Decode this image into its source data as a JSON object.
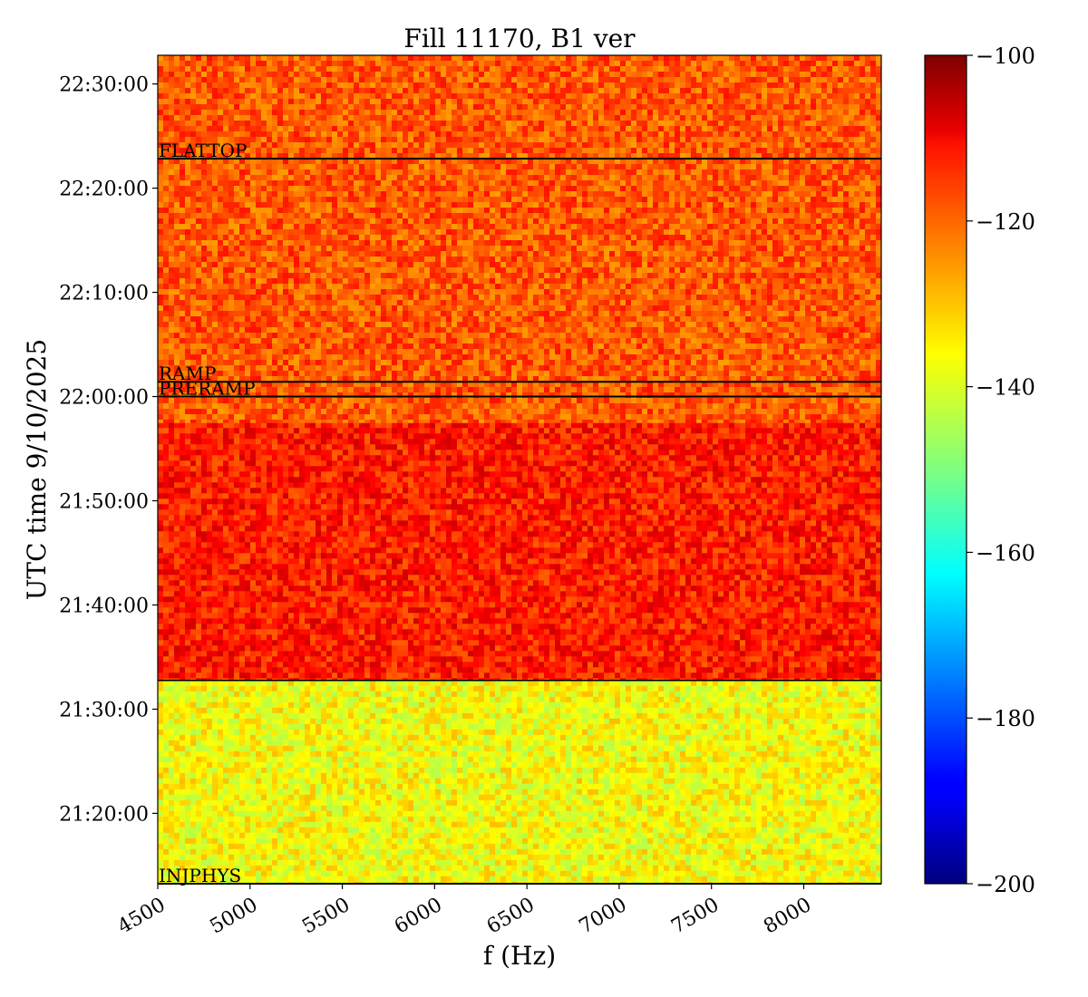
{
  "chart_data": {
    "type": "heatmap",
    "title": "Fill 11170, B1 ver",
    "xlabel": "f (Hz)",
    "ylabel": "UTC time 9/10/2025",
    "xlim": [
      4500,
      8420
    ],
    "ylim": [
      "21:13:15",
      "22:32:45"
    ],
    "x_ticks": [
      "4500",
      "5000",
      "5500",
      "6000",
      "6500",
      "7000",
      "7500",
      "8000"
    ],
    "x_tick_values": [
      4500,
      5000,
      5500,
      6000,
      6500,
      7000,
      7500,
      8000
    ],
    "y_ticks": [
      "21:20:00",
      "21:30:00",
      "21:40:00",
      "21:50:00",
      "22:00:00",
      "22:10:00",
      "22:20:00",
      "22:30:00"
    ],
    "y_tick_values": [
      "21:20:00",
      "21:30:00",
      "21:40:00",
      "21:50:00",
      "22:00:00",
      "22:10:00",
      "22:20:00",
      "22:30:00"
    ],
    "colormap": "jet",
    "colorbar": {
      "min": -200,
      "max": -100,
      "ticks": [
        "−100",
        "−120",
        "−140",
        "−160",
        "−180",
        "−200"
      ],
      "tick_values": [
        -100,
        -120,
        -140,
        -160,
        -180,
        -200
      ]
    },
    "phase_markers": [
      {
        "label": "FLATTOP",
        "time": "22:22:50"
      },
      {
        "label": "RAMP",
        "time": "22:01:25"
      },
      {
        "label": "PRERAMP",
        "time": "22:00:00"
      },
      {
        "label": "INJPHYS",
        "time": "21:13:15"
      }
    ],
    "boundary_lines": [
      "21:32:45"
    ],
    "regions": [
      {
        "from": "21:13:15",
        "to": "21:32:45",
        "mean_level": -138
      },
      {
        "from": "21:32:45",
        "to": "21:57:30",
        "mean_level": -115
      },
      {
        "from": "21:57:30",
        "to": "22:32:45",
        "mean_level": -121
      }
    ]
  }
}
